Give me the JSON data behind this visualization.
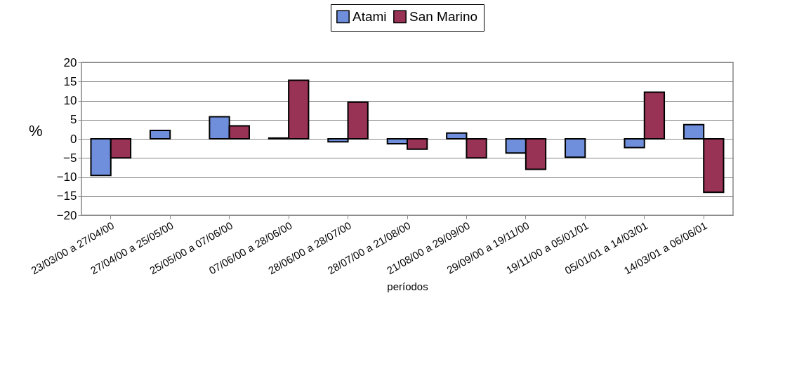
{
  "chart_data": {
    "type": "bar",
    "xlabel": "períodos",
    "ylabel": "%",
    "categories": [
      "23/03/00 a 27/04/00",
      "27/04/00 a 25/05/00",
      "25/05/00 a 07/06/00",
      "07/06/00 a 28/06/00",
      "28/06/00 a 28/07/00",
      "28/07/00 a 21/08/00",
      "21/08/00 a 29/09/00",
      "29/09/00 a 19/11/00",
      "19/11/00 a 05/01/01",
      "05/01/01 a 14/03/01",
      "14/03/01 a 06/06/01"
    ],
    "series": [
      {
        "name": "Atami",
        "color": "#6f8fdc",
        "values": [
          -9.6,
          2.2,
          5.8,
          0.2,
          -0.8,
          -1.3,
          1.5,
          -3.7,
          -4.8,
          -2.3,
          3.7
        ]
      },
      {
        "name": "San Marino",
        "color": "#993355",
        "values": [
          -5.0,
          null,
          3.4,
          15.3,
          9.6,
          -2.7,
          -5.0,
          -8.0,
          null,
          12.2,
          -14.0
        ]
      }
    ],
    "ylim": [
      -20,
      20
    ],
    "yticks": [
      -20,
      -15,
      -10,
      -5,
      0,
      5,
      10,
      15,
      20
    ],
    "grid": "y",
    "legend": "top"
  }
}
